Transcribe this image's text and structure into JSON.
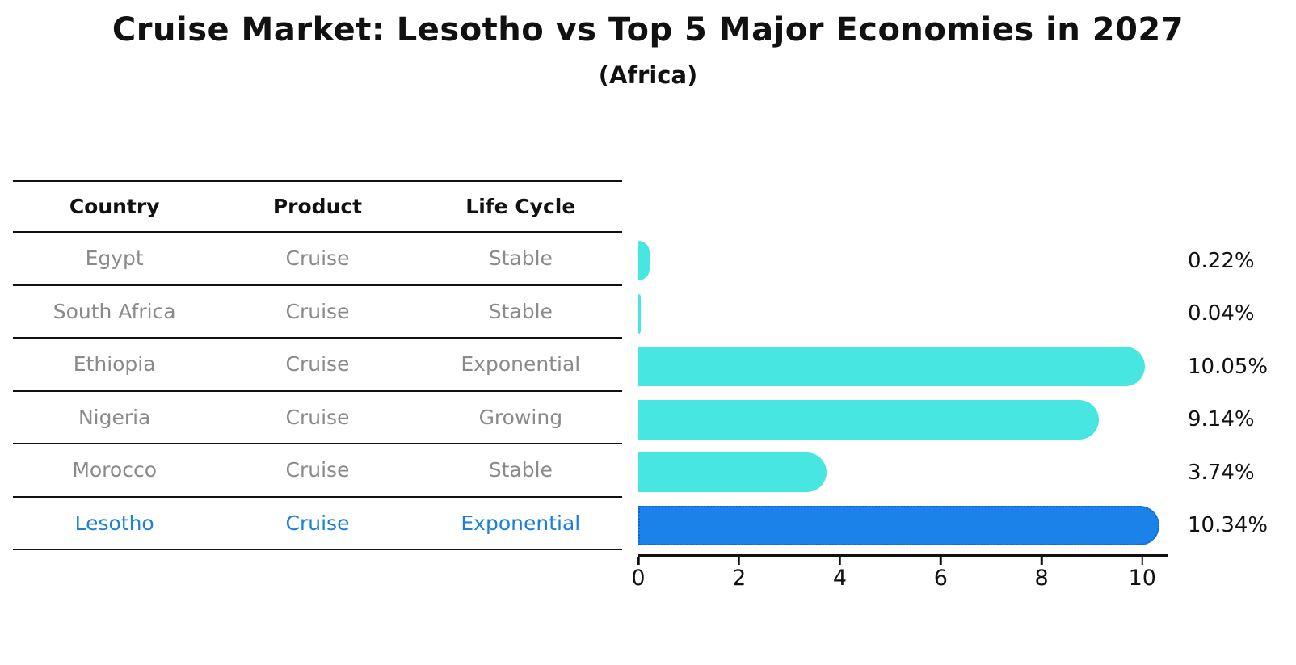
{
  "title": "Cruise Market: Lesotho vs Top 5 Major Economies in 2027",
  "subtitle": "(Africa)",
  "table": {
    "headers": [
      "Country",
      "Product",
      "Life Cycle"
    ]
  },
  "rows": [
    {
      "country": "Egypt",
      "product": "Cruise",
      "life_cycle": "Stable",
      "value": 0.22,
      "value_label": "0.22%",
      "highlight": false
    },
    {
      "country": "South Africa",
      "product": "Cruise",
      "life_cycle": "Stable",
      "value": 0.04,
      "value_label": "0.04%",
      "highlight": false
    },
    {
      "country": "Ethiopia",
      "product": "Cruise",
      "life_cycle": "Exponential",
      "value": 10.05,
      "value_label": "10.05%",
      "highlight": false
    },
    {
      "country": "Nigeria",
      "product": "Cruise",
      "life_cycle": "Growing",
      "value": 9.14,
      "value_label": "9.14%",
      "highlight": false
    },
    {
      "country": "Morocco",
      "product": "Cruise",
      "life_cycle": "Stable",
      "value": 3.74,
      "value_label": "3.74%",
      "highlight": false
    },
    {
      "country": "Lesotho",
      "product": "Cruise",
      "life_cycle": "Exponential",
      "value": 10.34,
      "value_label": "10.34%",
      "highlight": true
    }
  ],
  "chart_data": {
    "type": "bar",
    "orientation": "horizontal",
    "title": "Cruise Market: Lesotho vs Top 5 Major Economies in 2027",
    "subtitle": "(Africa)",
    "categories": [
      "Egypt",
      "South Africa",
      "Ethiopia",
      "Nigeria",
      "Morocco",
      "Lesotho"
    ],
    "values": [
      0.22,
      0.04,
      10.05,
      9.14,
      3.74,
      10.34
    ],
    "value_labels": [
      "0.22%",
      "0.04%",
      "10.05%",
      "9.14%",
      "3.74%",
      "10.34%"
    ],
    "xlabel": "",
    "ylabel": "",
    "xticks": [
      0,
      2,
      4,
      6,
      8,
      10
    ],
    "xlim": [
      0,
      10.5
    ],
    "grid": false,
    "legend": false,
    "highlight_index": 5
  },
  "colors": {
    "bar_color": "#47e6e0",
    "highlight_bar_color": "#1b82ea",
    "highlight_bar_edge": "#0f62d0",
    "highlight_text": "#1c7fd9",
    "cell_text": "#8a8a8a",
    "line_color": "#111111"
  }
}
